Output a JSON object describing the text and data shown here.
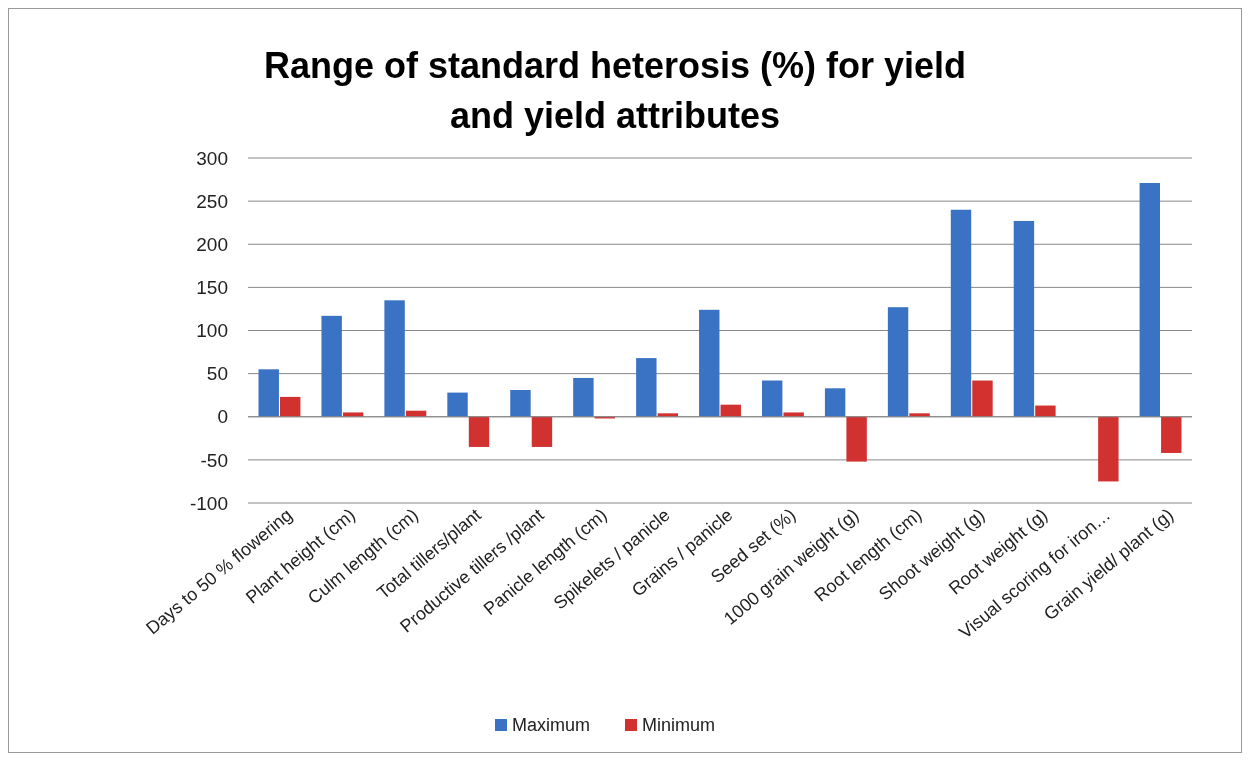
{
  "chart_data": {
    "type": "bar",
    "title": "Range of standard heterosis (%) for yield and yield attributes",
    "categories": [
      "Days to 50 % flowering",
      "Plant height (cm)",
      "Culm length (cm)",
      "Total tillers/plant",
      "Productive tillers /plant",
      "Panicle length (cm)",
      "Spikelets / panicle",
      "Grains / panicle",
      "Seed set (%)",
      "1000 grain weight (g)",
      "Root length (cm)",
      "Shoot weight (g)",
      "Root weight (g)",
      "Visual scoring for iron…",
      "Grain yield/ plant (g)"
    ],
    "series": [
      {
        "name": "Maximum",
        "color": "#3a72c4",
        "values": [
          55,
          117,
          135,
          28,
          31,
          45,
          68,
          124,
          42,
          33,
          127,
          240,
          227,
          null,
          271
        ]
      },
      {
        "name": "Minimum",
        "color": "#d1322f",
        "values": [
          23,
          5,
          7,
          -35,
          -35,
          -2,
          4,
          14,
          5,
          -52,
          4,
          42,
          13,
          -75,
          -42
        ]
      }
    ],
    "ylim": [
      -100,
      300
    ],
    "yticks": [
      -100,
      -50,
      0,
      50,
      100,
      150,
      200,
      250,
      300
    ],
    "grid": "y",
    "legend": "bottom"
  }
}
